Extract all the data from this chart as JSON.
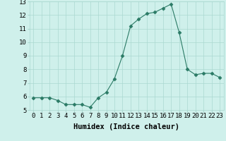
{
  "x": [
    0,
    1,
    2,
    3,
    4,
    5,
    6,
    7,
    8,
    9,
    10,
    11,
    12,
    13,
    14,
    15,
    16,
    17,
    18,
    19,
    20,
    21,
    22,
    23
  ],
  "y": [
    5.9,
    5.9,
    5.9,
    5.7,
    5.4,
    5.4,
    5.4,
    5.2,
    5.9,
    6.3,
    7.3,
    9.0,
    11.2,
    11.7,
    12.1,
    12.2,
    12.5,
    12.8,
    10.7,
    8.0,
    7.6,
    7.7,
    7.7,
    7.4
  ],
  "line_color": "#2a7a65",
  "marker": "D",
  "marker_size": 2.5,
  "bg_color": "#cff0eb",
  "grid_color": "#aad8d0",
  "xlabel": "Humidex (Indice chaleur)",
  "ylim": [
    5,
    13
  ],
  "xlim": [
    -0.5,
    23.5
  ],
  "yticks": [
    5,
    6,
    7,
    8,
    9,
    10,
    11,
    12,
    13
  ],
  "xticks": [
    0,
    1,
    2,
    3,
    4,
    5,
    6,
    7,
    8,
    9,
    10,
    11,
    12,
    13,
    14,
    15,
    16,
    17,
    18,
    19,
    20,
    21,
    22,
    23
  ],
  "xlabel_fontsize": 7.5,
  "tick_fontsize": 6.5
}
